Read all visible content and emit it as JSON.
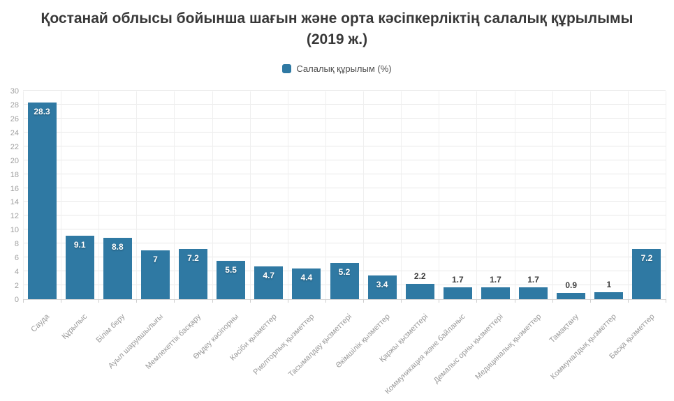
{
  "colors": {
    "bar": "#2f79a3",
    "title_text": "#383838",
    "axis_text": "#a0a0a0",
    "x_label_text": "#9a9a9a",
    "grid_h": "#e8e8e8",
    "grid_v": "#efefef",
    "value_inside": "#ffffff",
    "value_outside": "#3d3d3d"
  },
  "chart_data": {
    "type": "bar",
    "title": "Қостанай облысы бойынша шағын және орта кәсіпкерліктің салалық құрылымы (2019 ж.)",
    "series_label": "Салалық құрылым (%)",
    "legend_position": "top",
    "grid": true,
    "categories": [
      "Сауда",
      "Құрылыс",
      "Білім беру",
      "Ауыл шаруашылығы",
      "Мемлекеттік басқару",
      "Өңдеу кәсіпорны",
      "Кәсіби қызметтер",
      "Риелторлық қызметтер",
      "Тасымалдау қызметтері",
      "Әкімшілік қызметтер",
      "Қаржы қызметтері",
      "Коммуникация және байланыс",
      "Демалыс орны қызметтері",
      "Медициналық қызметтер",
      "Тамақтану",
      "Коммуналдық қызметтер",
      "Басқа қызметтер"
    ],
    "values": [
      28.3,
      9.1,
      8.8,
      7,
      7.2,
      5.5,
      4.7,
      4.4,
      5.2,
      3.4,
      2.2,
      1.7,
      1.7,
      1.7,
      0.9,
      1,
      7.2
    ],
    "xlabel": "",
    "ylabel": "",
    "ylim": [
      0,
      30
    ],
    "ytick_step": 2,
    "inside_label_threshold": 3
  }
}
